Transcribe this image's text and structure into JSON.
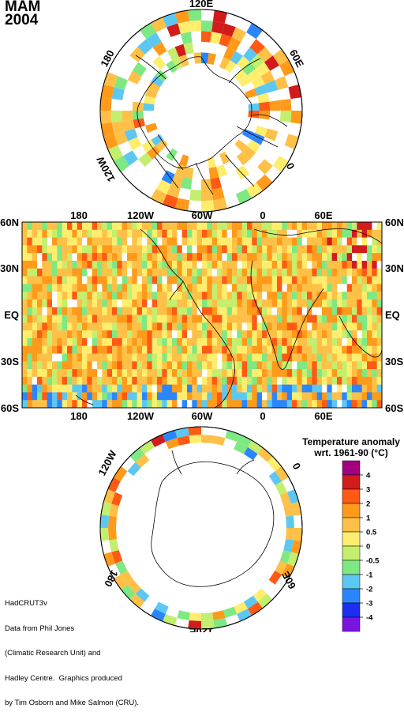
{
  "header": {
    "season": "MAM",
    "year": "2004"
  },
  "credit": {
    "lines": [
      "HadCRUT3v",
      "Data from Phil Jones",
      "(Climatic Research Unit) and",
      "Hadley Centre.  Graphics produced",
      "by Tim Osborn and Mike Salmon (CRU)."
    ]
  },
  "map_labels": {
    "north_polar": [
      "120E",
      "180",
      "60E",
      "120W",
      "0"
    ],
    "equirect_top": [
      "180",
      "120W",
      "60W",
      "0",
      "60E"
    ],
    "equirect_bottom": [
      "180",
      "120W",
      "60W",
      "0",
      "60E"
    ],
    "lat_left": [
      "60N",
      "30N",
      "EQ",
      "30S",
      "60S"
    ],
    "lat_right": [
      "60N",
      "30N",
      "EQ",
      "30S",
      "60S"
    ],
    "south_polar": [
      "120W",
      "0",
      "180",
      "60E",
      "120E"
    ]
  },
  "legend": {
    "title_line1": "Temperature anomaly",
    "title_line2": "wrt. 1961-90  (°C)",
    "ticks": [
      "4",
      "3",
      "2",
      "1",
      "0.5",
      "0",
      "-0.5",
      "-1",
      "-2",
      "-3",
      "-4"
    ],
    "colors": [
      "#a4007e",
      "#d21c1c",
      "#ff5a14",
      "#ff9a1a",
      "#ffc048",
      "#ffee6e",
      "#c4ee6e",
      "#7ee882",
      "#5cc8f2",
      "#2a86ff",
      "#1c2ef0",
      "#7a14e0"
    ]
  },
  "colors": {
    "background": "#ffffff",
    "coastline": "#000000",
    "no_data": "#ffffff"
  }
}
